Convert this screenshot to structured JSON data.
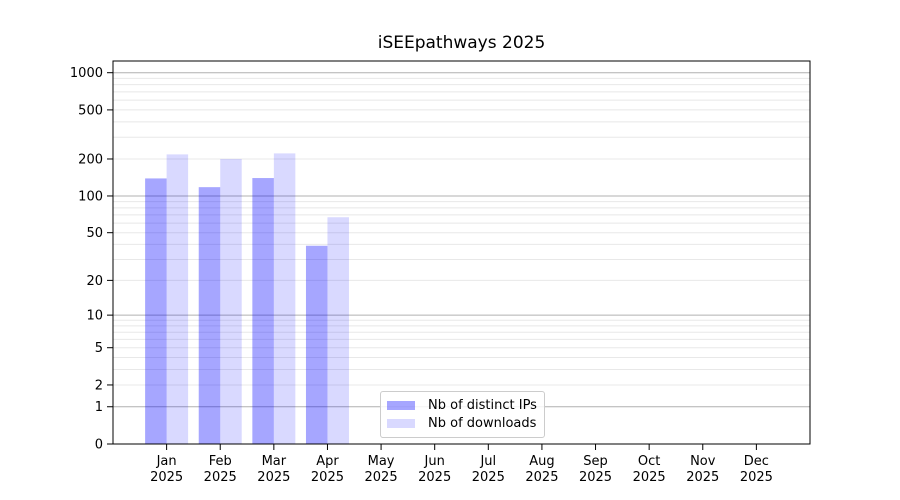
{
  "title": "iSEEpathways 2025",
  "legend": {
    "items": [
      {
        "label": "Nb of distinct IPs",
        "color": "rgba(0,0,255,0.35)"
      },
      {
        "label": "Nb of downloads",
        "color": "rgba(0,0,255,0.15)"
      }
    ]
  },
  "chart_data": {
    "type": "bar",
    "title": "iSEEpathways 2025",
    "categories": [
      "Jan 2025",
      "Feb 2025",
      "Mar 2025",
      "Apr 2025",
      "May 2025",
      "Jun 2025",
      "Jul 2025",
      "Aug 2025",
      "Sep 2025",
      "Oct 2025",
      "Nov 2025",
      "Dec 2025"
    ],
    "series": [
      {
        "name": "Nb of distinct IPs",
        "color": "rgba(0,0,255,0.35)",
        "values": [
          139,
          118,
          140,
          39,
          null,
          null,
          null,
          null,
          null,
          null,
          null,
          null
        ]
      },
      {
        "name": "Nb of downloads",
        "color": "rgba(0,0,255,0.15)",
        "values": [
          218,
          200,
          222,
          67,
          null,
          null,
          null,
          null,
          null,
          null,
          null,
          null
        ]
      }
    ],
    "yscale": "log10(1+y)",
    "yticks": [
      0,
      1,
      2,
      5,
      10,
      20,
      50,
      100,
      200,
      500,
      1000
    ],
    "ylim": [
      0,
      1250
    ],
    "grid": {
      "major_values": [
        1,
        10,
        100,
        1000
      ],
      "minor_values": [
        2,
        3,
        4,
        5,
        6,
        7,
        8,
        9,
        20,
        30,
        40,
        50,
        60,
        70,
        80,
        90,
        200,
        300,
        400,
        500,
        600,
        700,
        800,
        900
      ],
      "major_color": "#b0b0b0",
      "minor_color": "#e8e8e8"
    },
    "axis_color": "#000000",
    "legend_position": "lower center",
    "xlabel": "",
    "ylabel": ""
  }
}
